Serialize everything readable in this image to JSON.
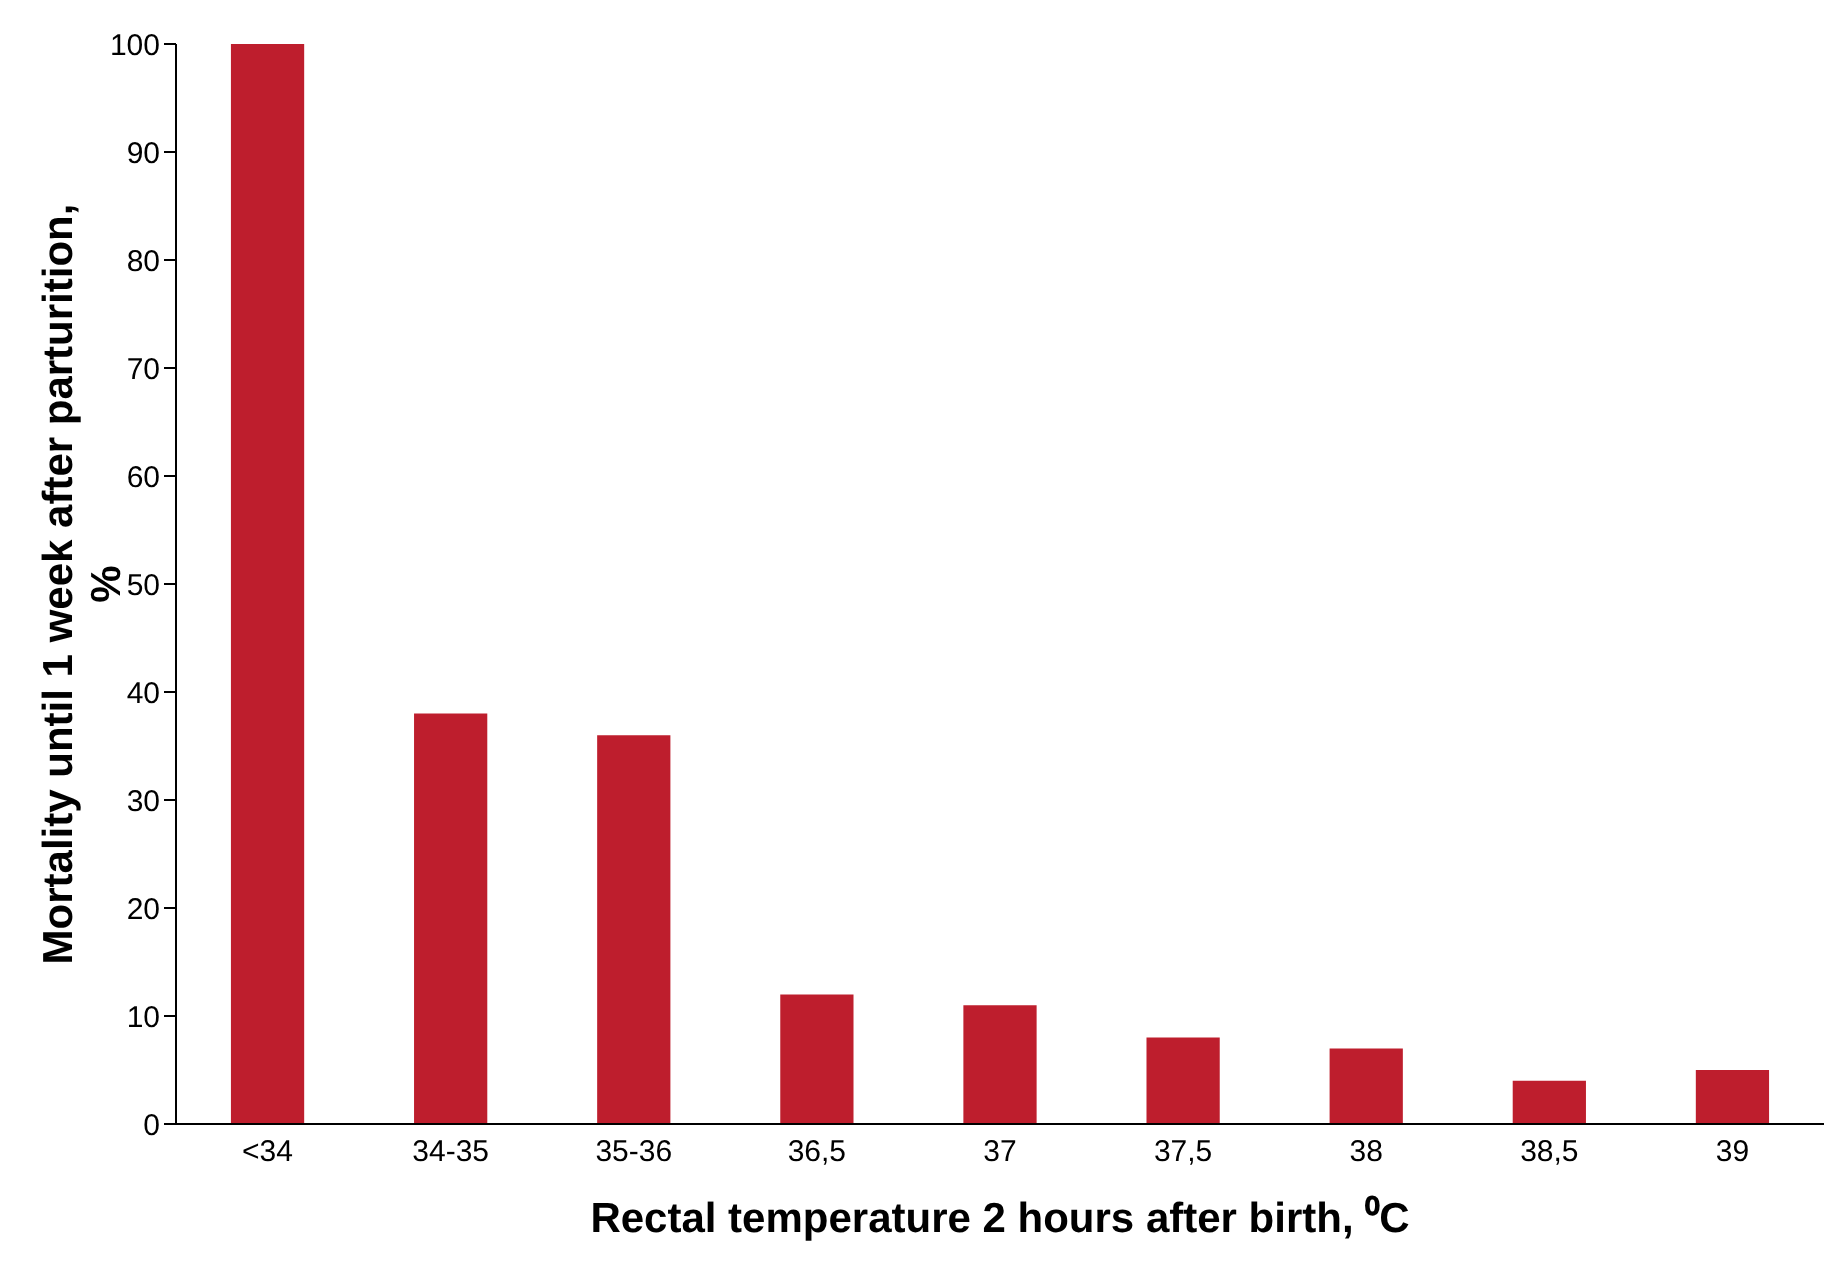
{
  "chart_data": {
    "type": "bar",
    "xlabel": "Rectal temperature 2 hours after birth, ⁰C",
    "ylabel": "Mortality until 1 week after parturition, %",
    "categories": [
      "<34",
      "34-35",
      "35-36",
      "36,5",
      "37",
      "37,5",
      "38",
      "38,5",
      "39"
    ],
    "values": [
      100,
      38,
      36,
      12,
      11,
      8,
      7,
      4,
      5
    ],
    "color": "#be1e2d",
    "ylim": [
      0,
      100
    ],
    "yticks": [
      0,
      10,
      20,
      30,
      40,
      50,
      60,
      70,
      80,
      90,
      100
    ],
    "grid": false,
    "legend": false
  }
}
